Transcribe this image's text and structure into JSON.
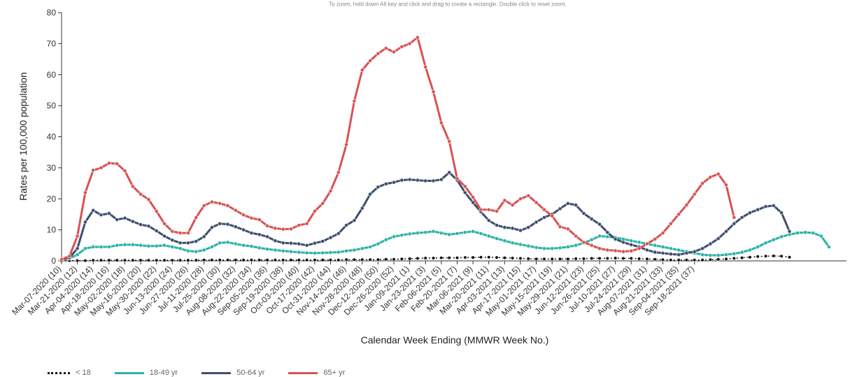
{
  "hint": "To zoom, hold down Alt key and click and drag to create a rectangle. Double click to reset zoom.",
  "legend": [
    {
      "label": "< 18",
      "color": "#111111",
      "style": "dotted"
    },
    {
      "label": "18-49 yr",
      "color": "#2bb3a6",
      "style": "solid"
    },
    {
      "label": "50-64 yr",
      "color": "#3d4f6e",
      "style": "solid"
    },
    {
      "label": "65+ yr",
      "color": "#d95252",
      "style": "solid"
    }
  ],
  "chart_data": {
    "type": "line",
    "xlabel": "Calendar Week Ending (MMWR Week No.)",
    "ylabel": "Rates per 100,000 population",
    "ylim": [
      0,
      80
    ],
    "yticks": [
      0,
      10,
      20,
      30,
      40,
      50,
      60,
      70,
      80
    ],
    "grid": false,
    "legend_position": "bottom",
    "x_tick_labels": [
      "Mar-07-2020 (10)",
      "Mar-21-2020 (12)",
      "Apr-04-2020 (14)",
      "Apr-18-2020 (16)",
      "May-02-2020 (18)",
      "May-16-2020 (20)",
      "May-30-2020 (22)",
      "Jun-13-2020 (24)",
      "Jun-27-2020 (26)",
      "Jul-11-2020 (28)",
      "Jul-25-2020 (30)",
      "Aug-08-2020 (32)",
      "Aug-22-2020 (34)",
      "Sep-05-2020 (36)",
      "Sep-19-2020 (38)",
      "Oct-03-2020 (40)",
      "Oct-17-2020 (42)",
      "Oct-31-2020 (44)",
      "Nov-14-2020 (46)",
      "Nov-28-2020 (48)",
      "Dec-12-2020 (50)",
      "Dec-26-2020 (52)",
      "Jan-09-2021 (1)",
      "Jan-23-2021 (3)",
      "Feb-06-2021 (5)",
      "Feb-20-2021 (7)",
      "Mar-06-2021 (9)",
      "Mar-20-2021 (11)",
      "Apr-03-2021 (13)",
      "Apr-17-2021 (15)",
      "May-01-2021 (17)",
      "May-15-2021 (19)",
      "May-29-2021 (21)",
      "Jun-12-2021 (23)",
      "Jun-26-2021 (25)",
      "Jul-10-2021 (27)",
      "Jul-24-2021 (29)",
      "Aug-07-2021 (31)",
      "Aug-21-2021 (33)",
      "Sep-04-2021 (35)",
      "Sep-18-2021 (37)"
    ],
    "series": [
      {
        "name": "< 18",
        "color": "#111111",
        "dashed": true,
        "values": [
          0.0,
          0.1,
          0.1,
          0.1,
          0.2,
          0.2,
          0.2,
          0.2,
          0.2,
          0.2,
          0.2,
          0.2,
          0.2,
          0.2,
          0.2,
          0.2,
          0.2,
          0.2,
          0.3,
          0.3,
          0.3,
          0.3,
          0.3,
          0.3,
          0.3,
          0.3,
          0.3,
          0.3,
          0.3,
          0.3,
          0.3,
          0.3,
          0.3,
          0.3,
          0.3,
          0.3,
          0.4,
          0.4,
          0.4,
          0.4,
          0.4,
          0.5,
          0.5,
          0.6,
          0.7,
          0.8,
          0.9,
          0.9,
          1.0,
          1.0,
          1.0,
          1.1,
          1.1,
          1.2,
          1.2,
          1.1,
          1.0,
          0.9,
          0.8,
          0.7,
          0.6,
          0.6,
          0.6,
          0.6,
          0.6,
          0.7,
          0.7,
          0.8,
          0.8,
          0.8,
          0.9,
          0.8,
          0.8,
          0.7,
          0.6,
          0.5,
          0.4,
          0.3,
          0.3,
          0.3,
          0.3,
          0.3,
          0.4,
          0.5,
          0.6,
          0.8,
          1.0,
          1.2,
          1.4,
          1.5,
          1.6,
          1.5,
          1.2
        ]
      },
      {
        "name": "18-49 yr",
        "color": "#2bb3a6",
        "values": [
          0.5,
          0.8,
          2.0,
          4.0,
          4.5,
          4.5,
          4.5,
          5.0,
          5.2,
          5.2,
          5.0,
          4.8,
          4.8,
          5.0,
          4.5,
          4.0,
          3.2,
          3.0,
          3.5,
          4.5,
          5.8,
          6.0,
          5.5,
          5.0,
          4.7,
          4.2,
          3.8,
          3.5,
          3.2,
          3.0,
          2.8,
          2.6,
          2.5,
          2.6,
          2.7,
          2.8,
          3.2,
          3.5,
          4.0,
          4.5,
          5.5,
          6.8,
          7.8,
          8.3,
          8.7,
          9.0,
          9.2,
          9.5,
          9.0,
          8.5,
          8.8,
          9.2,
          9.5,
          8.8,
          8.0,
          7.2,
          6.5,
          5.8,
          5.3,
          4.8,
          4.3,
          4.0,
          4.0,
          4.2,
          4.5,
          5.0,
          5.8,
          6.8,
          8.0,
          7.8,
          7.5,
          7.0,
          6.5,
          6.0,
          5.5,
          5.0,
          4.5,
          4.0,
          3.5,
          3.0,
          2.5,
          2.0,
          1.8,
          1.8,
          2.0,
          2.3,
          2.8,
          3.5,
          4.5,
          5.8,
          6.8,
          7.8,
          8.5,
          9.0,
          9.2,
          9.0,
          8.0,
          4.5
        ]
      },
      {
        "name": "50-64 yr",
        "color": "#3d4f6e",
        "values": [
          0.5,
          1.0,
          4.0,
          12.5,
          16.3,
          14.8,
          15.3,
          13.3,
          13.8,
          12.7,
          11.7,
          11.2,
          9.7,
          8.0,
          6.7,
          5.8,
          5.8,
          6.3,
          7.8,
          10.8,
          12.0,
          11.8,
          11.0,
          10.0,
          9.0,
          8.5,
          7.8,
          6.5,
          5.8,
          5.7,
          5.5,
          5.0,
          5.7,
          6.3,
          7.5,
          8.8,
          11.5,
          13.0,
          17.0,
          21.5,
          23.8,
          24.8,
          25.3,
          26.0,
          26.2,
          26.0,
          25.8,
          25.8,
          26.2,
          28.5,
          26.0,
          22.0,
          18.8,
          15.8,
          13.0,
          11.5,
          10.8,
          10.5,
          9.8,
          10.8,
          12.5,
          14.0,
          15.0,
          16.8,
          18.5,
          18.0,
          15.3,
          13.5,
          11.8,
          9.2,
          7.0,
          6.0,
          5.2,
          4.5,
          3.5,
          2.8,
          2.5,
          2.2,
          2.0,
          2.5,
          3.0,
          4.0,
          5.5,
          7.2,
          9.5,
          12.0,
          14.0,
          15.5,
          16.5,
          17.5,
          17.8,
          15.5,
          9.5
        ]
      },
      {
        "name": "65+ yr",
        "color": "#d95252",
        "values": [
          0.5,
          1.5,
          8.0,
          22.0,
          29.2,
          30.0,
          31.5,
          31.3,
          29.0,
          24.0,
          21.5,
          19.8,
          16.0,
          12.0,
          9.5,
          9.0,
          9.0,
          14.0,
          17.8,
          19.0,
          18.5,
          17.8,
          16.3,
          14.8,
          13.8,
          13.3,
          11.3,
          10.5,
          10.2,
          10.3,
          11.5,
          12.0,
          16.0,
          18.5,
          22.5,
          28.5,
          37.5,
          51.5,
          61.5,
          64.5,
          66.8,
          68.5,
          67.3,
          69.0,
          70.0,
          72.0,
          62.5,
          54.5,
          44.5,
          38.5,
          26.5,
          24.0,
          20.5,
          16.5,
          16.5,
          16.0,
          19.5,
          18.0,
          20.0,
          21.0,
          18.8,
          16.5,
          14.5,
          11.0,
          10.3,
          8.0,
          6.0,
          5.0,
          4.0,
          3.5,
          3.3,
          3.0,
          3.2,
          4.0,
          5.5,
          7.0,
          9.0,
          12.0,
          15.0,
          18.0,
          21.5,
          25.0,
          27.0,
          28.0,
          24.5,
          14.0
        ]
      }
    ]
  }
}
